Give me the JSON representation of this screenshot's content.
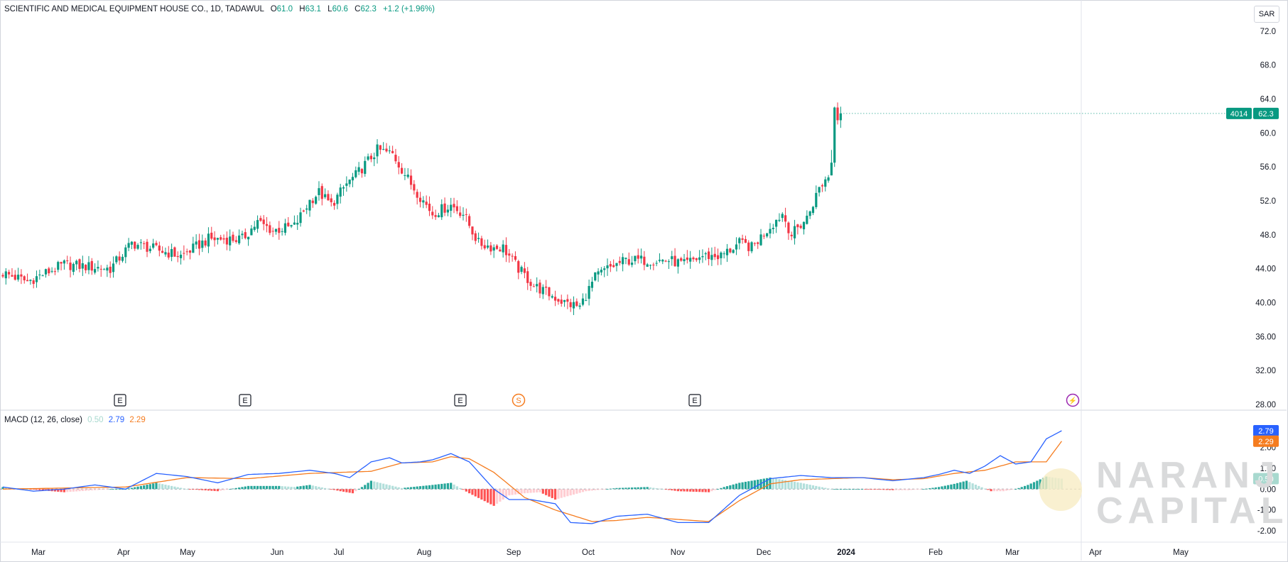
{
  "header": {
    "title": "SCIENTIFIC AND MEDICAL EQUIPMENT HOUSE CO., 1D, TADAWUL",
    "o_label": "O",
    "o_value": "61.0",
    "h_label": "H",
    "h_value": "63.1",
    "l_label": "L",
    "l_value": "60.6",
    "c_label": "C",
    "c_value": "62.3",
    "change": "+1.2 (+1.96%)"
  },
  "currency": "SAR",
  "price_tag": {
    "symbol": "4014",
    "value": "62.3"
  },
  "macd": {
    "label": "MACD (12, 26, close)",
    "hist_value": "0.50",
    "macd_value": "2.79",
    "signal_value": "2.29",
    "hist_tag": "0.50",
    "macd_tag": "2.79",
    "signal_tag": "2.29"
  },
  "watermark": {
    "line1": "NARANJ",
    "line2": "CAPITAL"
  },
  "event_markers": [
    "E",
    "E",
    "E",
    "S",
    "E",
    "⚡"
  ],
  "colors": {
    "up": "#089981",
    "down": "#f23645",
    "macd": "#2962ff",
    "signal": "#f57c1f",
    "hist_up_strong": "#26a69a",
    "hist_up_weak": "#b2dfdb",
    "hist_down_strong": "#ff5252",
    "hist_down_weak": "#ffcdd2"
  },
  "chart_data": [
    {
      "type": "candlestick",
      "ylim": [
        28,
        74
      ],
      "ytick_labels": [
        "72.0",
        "68.0",
        "64.0",
        "60.0",
        "56.0",
        "52.0",
        "48.0",
        "44.00",
        "40.00",
        "36.00",
        "32.00",
        "28.00"
      ],
      "ytick_values": [
        72,
        68,
        64,
        60,
        56,
        52,
        48,
        44,
        40,
        36,
        32,
        28
      ],
      "xtick_labels": [
        "Mar",
        "Apr",
        "May",
        "Jun",
        "Jul",
        "Aug",
        "Sep",
        "Oct",
        "Nov",
        "Dec",
        "2024",
        "Feb",
        "Mar",
        "Apr",
        "May"
      ],
      "close_trend": {
        "day_index": [
          0,
          8,
          20,
          35,
          42,
          58,
          67,
          78,
          83,
          88,
          95,
          100,
          103,
          107,
          112,
          115,
          122,
          127,
          133,
          140,
          146,
          150,
          155,
          160,
          163,
          168,
          173,
          178,
          183,
          188,
          193,
          197,
          203,
          210,
          217,
          222,
          228,
          234,
          240,
          244,
          250,
          254,
          257,
          262,
          266,
          269
        ],
        "close": [
          43.5,
          42.5,
          44.5,
          44,
          47,
          45.5,
          47.5,
          47.5,
          49.5,
          48.5,
          49,
          52,
          53,
          51.5,
          54,
          55,
          58,
          57.5,
          54,
          50.5,
          51.5,
          50.5,
          47,
          46.5,
          46.5,
          44,
          42,
          41,
          40,
          39.5,
          43,
          44,
          45,
          45,
          45,
          44.5,
          45.5,
          45.5,
          47,
          46.5,
          49,
          50.5,
          48,
          50,
          53.5,
          55
        ]
      }
    },
    {
      "type": "macd",
      "ylim": [
        -2.4,
        3.3
      ],
      "ytick_labels": [
        "2.00",
        "1.00",
        "0.00",
        "-1.00",
        "-2.00"
      ],
      "ytick_values": [
        2,
        1,
        0,
        -1,
        -2
      ],
      "macd_line": {
        "day_index": [
          0,
          10,
          20,
          30,
          40,
          50,
          60,
          70,
          80,
          90,
          100,
          108,
          113,
          120,
          126,
          130,
          136,
          140,
          146,
          152,
          160,
          165,
          172,
          180,
          185,
          192,
          200,
          210,
          220,
          230,
          240,
          250,
          260,
          270,
          280,
          290,
          300,
          305,
          310,
          315,
          320,
          325,
          330,
          335,
          340,
          345
        ],
        "value": [
          0.1,
          -0.1,
          0.0,
          0.2,
          0.0,
          0.75,
          0.6,
          0.3,
          0.7,
          0.75,
          0.9,
          0.75,
          0.55,
          1.3,
          1.5,
          1.25,
          1.3,
          1.4,
          1.7,
          1.3,
          0.0,
          -0.5,
          -0.5,
          -0.7,
          -1.6,
          -1.65,
          -1.3,
          -1.2,
          -1.6,
          -1.6,
          -0.3,
          0.5,
          0.65,
          0.55,
          0.55,
          0.4,
          0.55,
          0.7,
          0.9,
          0.75,
          1.1,
          1.6,
          1.2,
          1.3,
          2.4,
          2.79
        ]
      },
      "signal_line": {
        "day_index": [
          0,
          20,
          40,
          60,
          80,
          100,
          120,
          130,
          140,
          146,
          152,
          160,
          170,
          180,
          192,
          200,
          210,
          220,
          230,
          240,
          250,
          260,
          270,
          280,
          290,
          300,
          310,
          320,
          330,
          340,
          345
        ],
        "value": [
          0.0,
          0.05,
          0.1,
          0.55,
          0.5,
          0.75,
          0.85,
          1.25,
          1.3,
          1.55,
          1.45,
          0.8,
          -0.4,
          -1.0,
          -1.55,
          -1.5,
          -1.35,
          -1.45,
          -1.55,
          -0.55,
          0.25,
          0.45,
          0.5,
          0.55,
          0.45,
          0.5,
          0.75,
          0.9,
          1.3,
          1.3,
          2.29
        ]
      },
      "histogram": {
        "day_index": [
          0,
          20,
          35,
          40,
          50,
          60,
          70,
          80,
          90,
          95,
          100,
          110,
          114,
          120,
          130,
          140,
          146,
          152,
          156,
          160,
          165,
          170,
          175,
          180,
          190,
          200,
          210,
          220,
          230,
          235,
          240,
          250,
          260,
          270,
          280,
          290,
          295,
          300,
          305,
          310,
          314,
          318,
          322,
          326,
          330,
          334,
          340,
          345
        ],
        "value": [
          0.1,
          -0.15,
          0.0,
          0.0,
          0.3,
          0.0,
          -0.1,
          0.15,
          0.15,
          0.1,
          0.2,
          -0.1,
          -0.2,
          0.4,
          0.05,
          0.2,
          0.3,
          -0.2,
          -0.5,
          -0.8,
          -0.3,
          -0.2,
          -0.15,
          -0.5,
          -0.1,
          0.05,
          0.1,
          -0.1,
          -0.15,
          0.1,
          0.3,
          0.55,
          0.3,
          0.0,
          0.0,
          -0.05,
          -0.05,
          0.0,
          0.1,
          0.25,
          0.4,
          0.15,
          -0.1,
          -0.1,
          0.0,
          0.2,
          0.6,
          0.5
        ]
      }
    }
  ]
}
